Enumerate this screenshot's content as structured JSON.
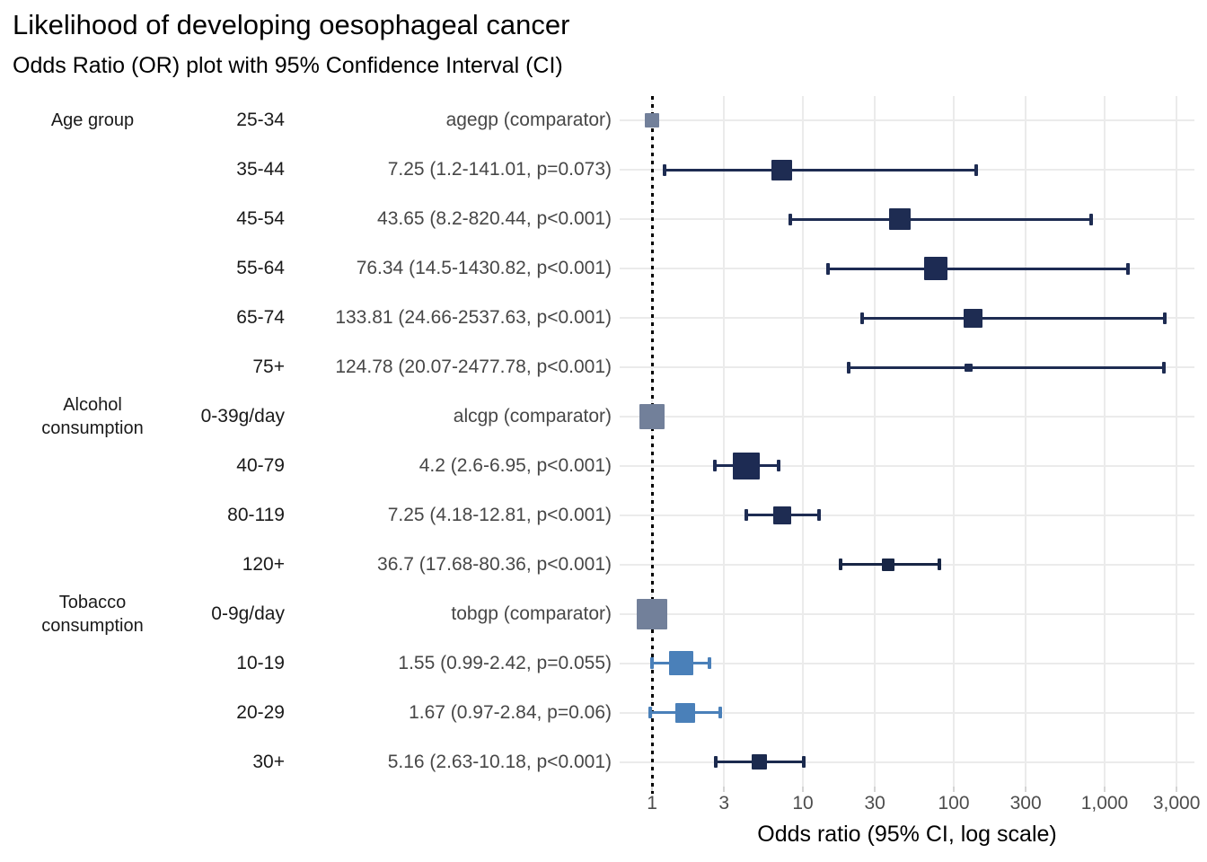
{
  "chart_data": {
    "type": "forest",
    "title": "Likelihood of developing oesophageal cancer",
    "subtitle": "Odds Ratio (OR) plot with 95% Confidence Interval (CI)",
    "xlabel": "Odds ratio (95% CI, log scale)",
    "x_scale": "log10",
    "xlim": [
      0.61,
      3940
    ],
    "grid": "on",
    "x_ticks": [
      {
        "value": 1,
        "label": "1"
      },
      {
        "value": 3,
        "label": "3"
      },
      {
        "value": 10,
        "label": "10"
      },
      {
        "value": 30,
        "label": "30"
      },
      {
        "value": 100,
        "label": "100"
      },
      {
        "value": 300,
        "label": "300"
      },
      {
        "value": 1000,
        "label": "1,000"
      },
      {
        "value": 3000,
        "label": "3,000"
      }
    ],
    "reference_line": {
      "value": 1,
      "style": "dotted",
      "color": "#000000"
    },
    "colors": {
      "grid": "#ebebeb",
      "axis_tick": "#d4d4d4",
      "axis_text": "#4d4d4d",
      "comparator_marker": "#72809a",
      "navy_marker": "#1e2c52",
      "light_blue_marker": "#4a80b9"
    },
    "groups": [
      {
        "lines": [
          "Age group"
        ],
        "row": 0
      },
      {
        "lines": [
          "Alcohol",
          "consumption"
        ],
        "row": 6
      },
      {
        "lines": [
          "Tobacco",
          "consumption"
        ],
        "row": 10
      }
    ],
    "rows": [
      {
        "level": "25-34",
        "value_label": "agegp (comparator)",
        "or": 1,
        "comparator": true,
        "color": "#72809a",
        "size": 16
      },
      {
        "level": "35-44",
        "value_label": "7.25 (1.2-141.01, p=0.073)",
        "or": 7.25,
        "ci_low": 1.2,
        "ci_high": 141.01,
        "comparator": false,
        "color": "#1e2c52",
        "size": 23
      },
      {
        "level": "45-54",
        "value_label": "43.65 (8.2-820.44, p<0.001)",
        "or": 43.65,
        "ci_low": 8.2,
        "ci_high": 820.44,
        "comparator": false,
        "color": "#1e2c52",
        "size": 24
      },
      {
        "level": "55-64",
        "value_label": "76.34 (14.5-1430.82, p<0.001)",
        "or": 76.34,
        "ci_low": 14.5,
        "ci_high": 1430.82,
        "comparator": false,
        "color": "#1d2b53",
        "size": 26
      },
      {
        "level": "65-74",
        "value_label": "133.81 (24.66-2537.63, p<0.001)",
        "or": 133.81,
        "ci_low": 24.66,
        "ci_high": 2537.63,
        "comparator": false,
        "color": "#1e2c52",
        "size": 21
      },
      {
        "level": "75+",
        "value_label": "124.78 (20.07-2477.78, p<0.001)",
        "or": 124.78,
        "ci_low": 20.07,
        "ci_high": 2477.78,
        "comparator": false,
        "color": "#1e2c52",
        "size": 9
      },
      {
        "level": "0-39g/day",
        "value_label": "alcgp (comparator)",
        "or": 1,
        "comparator": true,
        "color": "#72809a",
        "size": 28
      },
      {
        "level": "40-79",
        "value_label": "4.2 (2.6-6.95, p<0.001)",
        "or": 4.2,
        "ci_low": 2.6,
        "ci_high": 6.95,
        "comparator": false,
        "color": "#1d2b53",
        "size": 30
      },
      {
        "level": "80-119",
        "value_label": "7.25 (4.18-12.81, p<0.001)",
        "or": 7.25,
        "ci_low": 4.18,
        "ci_high": 12.81,
        "comparator": false,
        "color": "#1e2c52",
        "size": 20
      },
      {
        "level": "120+",
        "value_label": "36.7 (17.68-80.36, p<0.001)",
        "or": 36.7,
        "ci_low": 17.68,
        "ci_high": 80.36,
        "comparator": false,
        "color": "#182645",
        "size": 14
      },
      {
        "level": "0-9g/day",
        "value_label": "tobgp (comparator)",
        "or": 1,
        "comparator": true,
        "color": "#72809a",
        "size": 34
      },
      {
        "level": "10-19",
        "value_label": "1.55 (0.99-2.42, p=0.055)",
        "or": 1.55,
        "ci_low": 0.99,
        "ci_high": 2.42,
        "comparator": false,
        "color": "#4a80b9",
        "size": 27
      },
      {
        "level": "20-29",
        "value_label": "1.67 (0.97-2.84, p=0.06)",
        "or": 1.67,
        "ci_low": 0.97,
        "ci_high": 2.84,
        "comparator": false,
        "color": "#4a80b9",
        "size": 22
      },
      {
        "level": "30+",
        "value_label": "5.16 (2.63-10.18, p<0.001)",
        "or": 5.16,
        "ci_low": 2.63,
        "ci_high": 10.18,
        "comparator": false,
        "color": "#1b2a4e",
        "size": 17
      }
    ]
  }
}
